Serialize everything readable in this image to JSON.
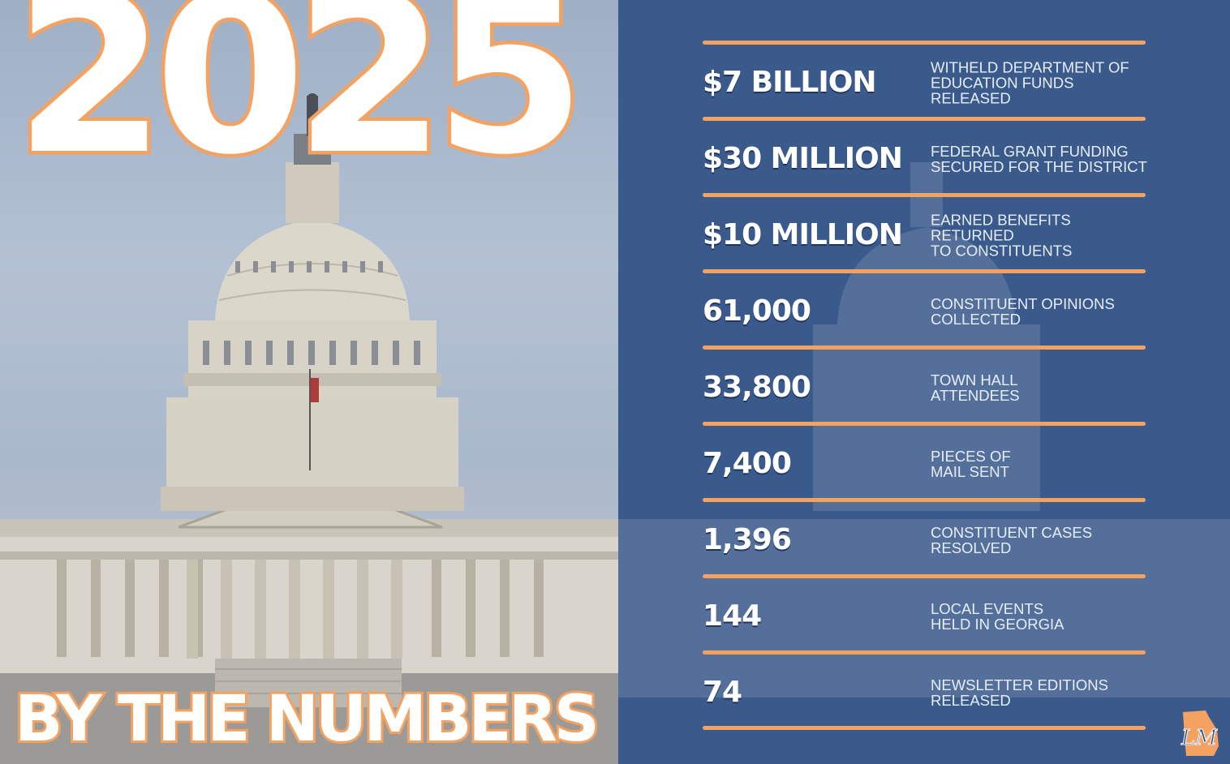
{
  "headline": {
    "year": "2025",
    "subtitle": "BY THE NUMBERS"
  },
  "colors": {
    "accent": "#f4a261",
    "panel": "#3b5a8c",
    "text": "#ffffff"
  },
  "stats": [
    {
      "value": "$7 BILLION",
      "line1": "WITHELD DEPARTMENT OF",
      "line2": "EDUCATION FUNDS RELEASED"
    },
    {
      "value": "$30 MILLION",
      "line1": "FEDERAL GRANT FUNDING",
      "line2": "SECURED FOR THE DISTRICT"
    },
    {
      "value": "$10 MILLION",
      "line1": "EARNED BENEFITS RETURNED",
      "line2": "TO CONSTITUENTS"
    },
    {
      "value": "61,000",
      "line1": "CONSTITUENT OPINIONS",
      "line2": "COLLECTED"
    },
    {
      "value": "33,800",
      "line1": "TOWN HALL",
      "line2": "ATTENDEES"
    },
    {
      "value": "7,400",
      "line1": "PIECES OF",
      "line2": "MAIL SENT"
    },
    {
      "value": "1,396",
      "line1": "CONSTITUENT CASES",
      "line2": "RESOLVED"
    },
    {
      "value": "144",
      "line1": "LOCAL EVENTS",
      "line2": "HELD IN GEORGIA"
    },
    {
      "value": "74",
      "line1": "NEWSLETTER EDITIONS",
      "line2": "RELEASED"
    }
  ],
  "logo": {
    "initials": "LM",
    "icon": "georgia-state-logo"
  }
}
